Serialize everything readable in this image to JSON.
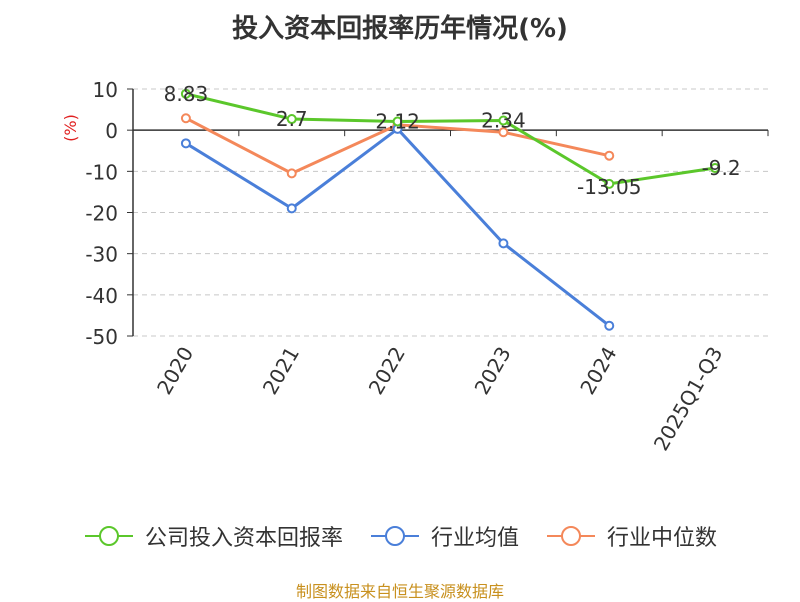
{
  "chart_data": {
    "type": "line",
    "title": "投入资本回报率历年情况(%)",
    "ylabel": "(%)",
    "ylim": [
      -50,
      10
    ],
    "yticks": [
      10,
      0,
      -10,
      -20,
      -30,
      -40,
      -50
    ],
    "categories": [
      "2020",
      "2021",
      "2022",
      "2023",
      "2024",
      "2025Q1-Q3"
    ],
    "grid": true,
    "legend_position": "bottom",
    "series": [
      {
        "name": "公司投入资本回报率",
        "color": "#5bc72b",
        "values": [
          8.83,
          2.7,
          2.12,
          2.34,
          -13.05,
          -9.2
        ],
        "labels": [
          "8.83",
          "2.7",
          "2.12",
          "2.34",
          "-13.05",
          "-9.2"
        ]
      },
      {
        "name": "行业均值",
        "color": "#4a7fd9",
        "values": [
          -3.2,
          -19.0,
          0.3,
          -27.5,
          -47.5,
          null
        ]
      },
      {
        "name": "行业中位数",
        "color": "#f4885a",
        "values": [
          2.9,
          -10.5,
          1.3,
          -0.5,
          -6.2,
          null
        ]
      }
    ]
  },
  "source": "制图数据来自恒生聚源数据库"
}
